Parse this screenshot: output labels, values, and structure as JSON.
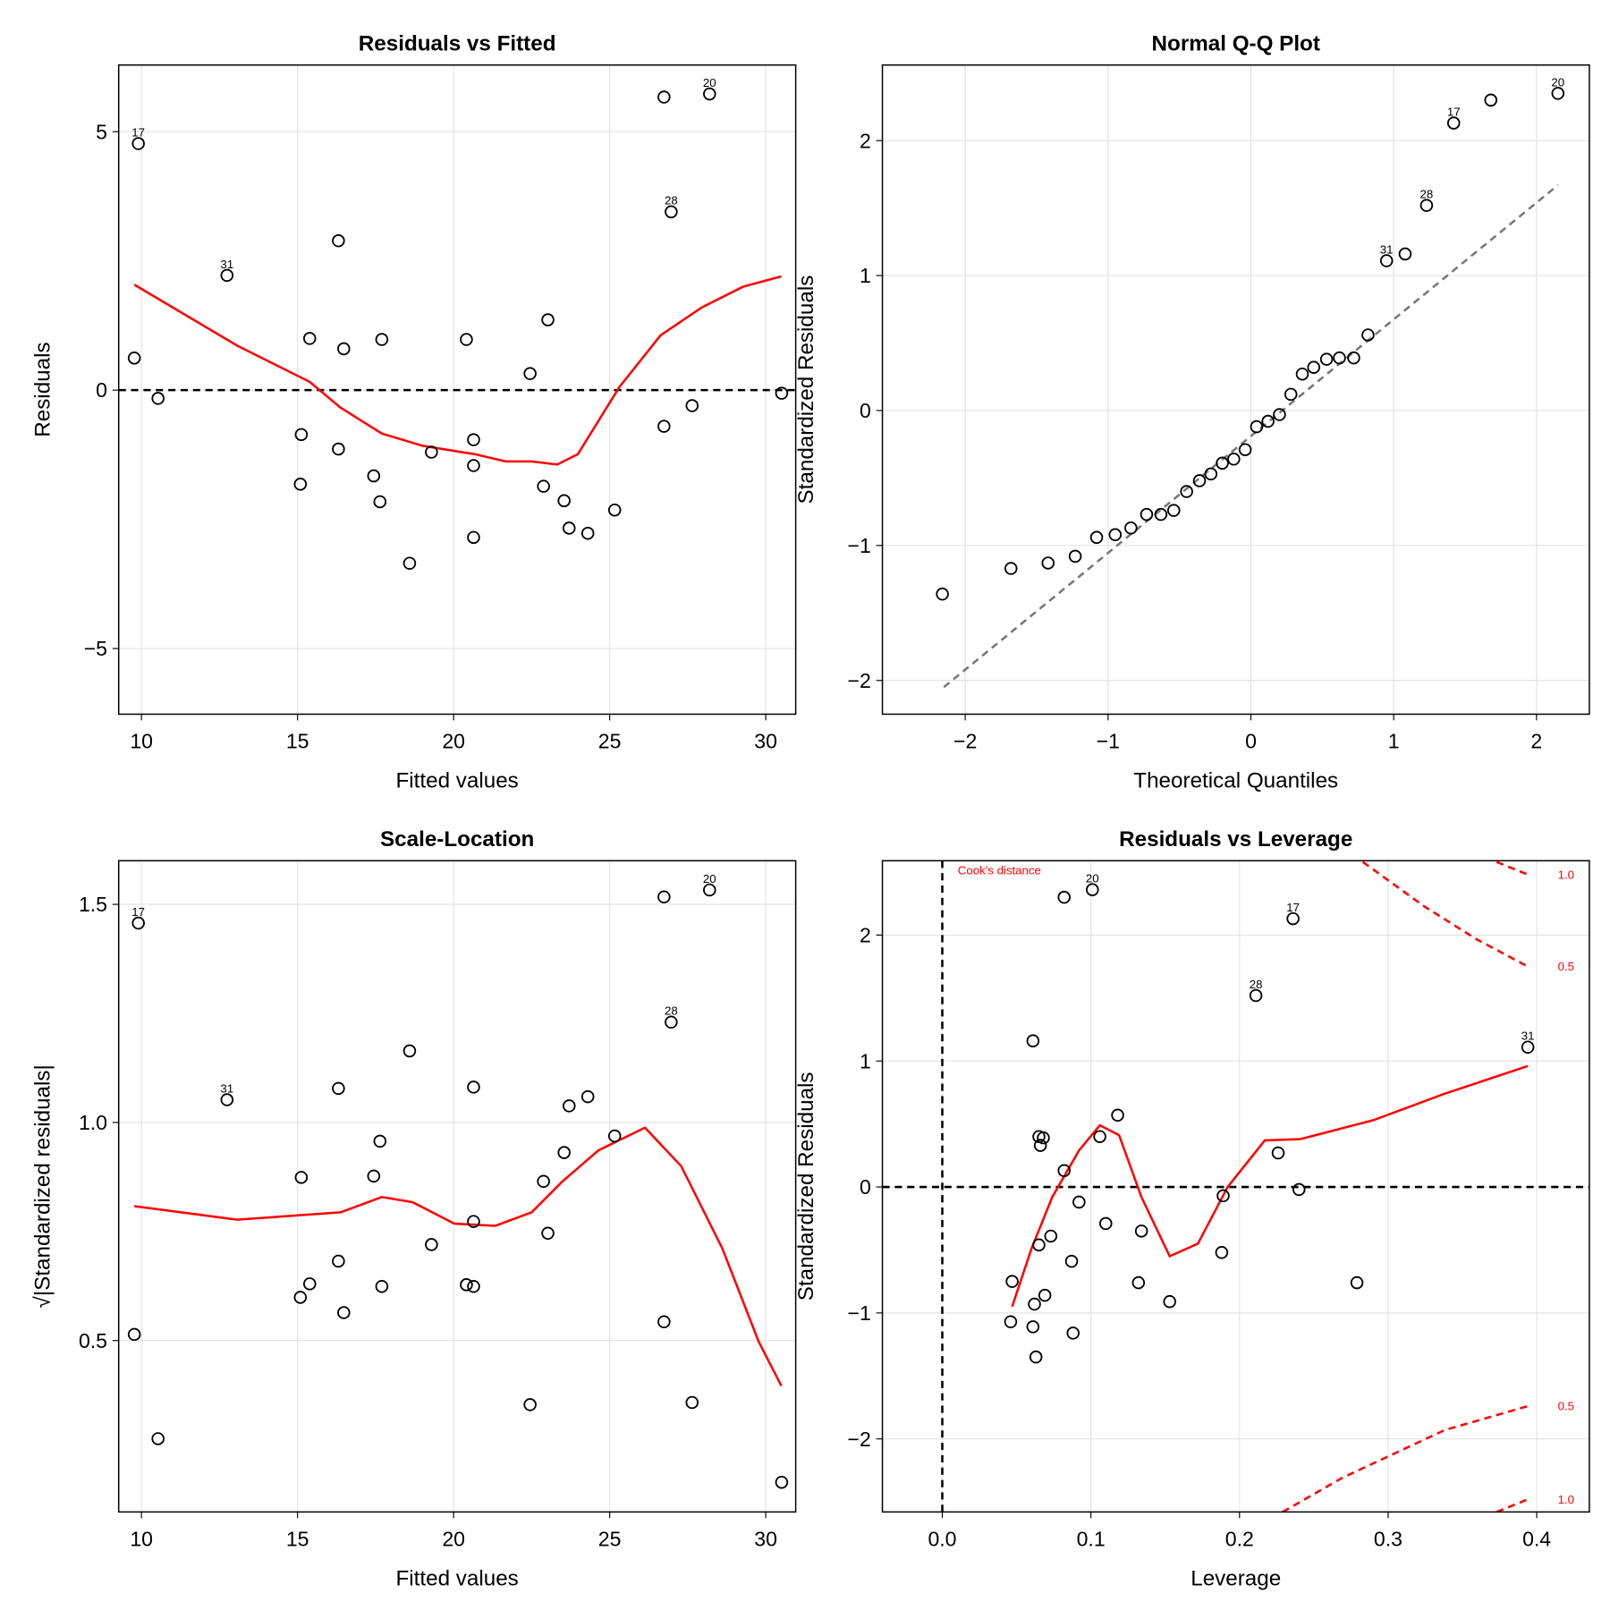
{
  "chart_data": [
    {
      "type": "scatter",
      "title": "Residuals vs Fitted",
      "x_label": "Fitted values",
      "y_label": "Residuals",
      "xlim": [
        9.27,
        30.96
      ],
      "ylim": [
        -6.27,
        6.29
      ],
      "xticks": [
        10,
        15,
        20,
        25,
        30
      ],
      "yticks": [
        {
          "value": -5,
          "label": "−5"
        },
        0,
        5
      ],
      "grid": true,
      "points": {
        "x": [
          9.9,
          9.77,
          10.53,
          12.74,
          16.31,
          15.39,
          16.48,
          17.7,
          20.41,
          23.02,
          22.45,
          15.12,
          16.31,
          15.09,
          17.44,
          17.64,
          19.29,
          20.64,
          20.64,
          20.64,
          18.59,
          22.88,
          23.54,
          23.7,
          24.3,
          25.16,
          26.74,
          28.2,
          26.97,
          26.74,
          27.64,
          30.51
        ],
        "values": [
          4.77,
          0.62,
          -0.16,
          2.22,
          2.89,
          1.0,
          0.8,
          0.98,
          0.98,
          1.36,
          0.32,
          -0.86,
          -1.14,
          -1.82,
          -1.66,
          -2.16,
          -1.2,
          -0.96,
          -1.46,
          -2.85,
          -3.35,
          -1.86,
          -2.14,
          -2.67,
          -2.77,
          -2.32,
          5.67,
          5.73,
          3.45,
          -0.7,
          -0.3,
          -0.06
        ],
        "labels": [
          "17",
          null,
          null,
          "31",
          null,
          null,
          null,
          null,
          null,
          null,
          null,
          null,
          null,
          null,
          null,
          null,
          null,
          null,
          null,
          null,
          null,
          null,
          null,
          null,
          null,
          null,
          null,
          "20",
          "28",
          null,
          null,
          null
        ]
      },
      "smooth": {
        "color": "#ff0000",
        "x": [
          9.77,
          13.07,
          15.39,
          16.38,
          17.7,
          19.02,
          20.68,
          21.67,
          22.5,
          23.32,
          23.98,
          25.31,
          26.63,
          27.95,
          29.27,
          30.5
        ],
        "values": [
          2.04,
          0.86,
          0.16,
          -0.34,
          -0.84,
          -1.08,
          -1.24,
          -1.38,
          -1.38,
          -1.44,
          -1.24,
          0.06,
          1.06,
          1.6,
          2.0,
          2.2
        ]
      },
      "hline": 0
    },
    {
      "type": "scatter",
      "title": "Normal Q-Q Plot",
      "x_label": "Theoretical Quantiles",
      "y_label": "Standardized Residuals",
      "xlim": [
        -2.58,
        2.37
      ],
      "ylim": [
        -2.25,
        2.56
      ],
      "xticks": [
        {
          "value": -2,
          "label": "−2"
        },
        {
          "value": -1,
          "label": "−1"
        },
        0,
        1,
        2
      ],
      "yticks": [
        {
          "value": -2,
          "label": "−2"
        },
        {
          "value": -1,
          "label": "−1"
        },
        0,
        1,
        2
      ],
      "grid": true,
      "points": {
        "x": [
          -2.16,
          -1.68,
          -1.42,
          -1.23,
          -1.08,
          -0.95,
          -0.84,
          -0.73,
          -0.63,
          -0.54,
          -0.45,
          -0.36,
          -0.28,
          -0.2,
          -0.12,
          -0.04,
          0.04,
          0.12,
          0.2,
          0.28,
          0.36,
          0.44,
          0.53,
          0.62,
          0.72,
          0.82,
          0.95,
          1.08,
          1.23,
          1.42,
          1.68,
          2.15
        ],
        "values": [
          -1.36,
          -1.17,
          -1.13,
          -1.08,
          -0.94,
          -0.92,
          -0.87,
          -0.77,
          -0.77,
          -0.74,
          -0.6,
          -0.52,
          -0.47,
          -0.39,
          -0.36,
          -0.29,
          -0.12,
          -0.08,
          -0.03,
          0.12,
          0.27,
          0.32,
          0.38,
          0.39,
          0.39,
          0.56,
          1.11,
          1.16,
          1.52,
          2.13,
          2.3,
          2.35
        ],
        "labels": [
          null,
          null,
          null,
          null,
          null,
          null,
          null,
          null,
          null,
          null,
          null,
          null,
          null,
          null,
          null,
          null,
          null,
          null,
          null,
          null,
          null,
          null,
          null,
          null,
          null,
          null,
          "31",
          null,
          "28",
          "17",
          null,
          "20"
        ]
      },
      "ref_line": {
        "color": "#777777",
        "x": [
          -2.15,
          2.15
        ],
        "values": [
          -2.05,
          1.67
        ]
      }
    },
    {
      "type": "scatter",
      "title": "Scale-Location",
      "x_label": "Fitted values",
      "y_label": "√|Standardized residuals|",
      "xlim": [
        9.27,
        30.96
      ],
      "ylim": [
        0.107,
        1.6
      ],
      "xticks": [
        10,
        15,
        20,
        25,
        30
      ],
      "yticks": [
        0.5,
        {
          "value": 1,
          "label": "1.0"
        },
        1.5
      ],
      "grid": true,
      "points": {
        "x": [
          9.9,
          9.77,
          10.53,
          12.74,
          16.31,
          15.39,
          16.48,
          17.7,
          20.41,
          20.64,
          23.02,
          22.45,
          15.12,
          16.31,
          15.09,
          17.44,
          17.64,
          19.29,
          20.64,
          20.64,
          18.59,
          22.88,
          23.54,
          23.7,
          24.3,
          25.16,
          26.74,
          28.2,
          26.97,
          26.74,
          27.64,
          30.51
        ],
        "values": [
          1.457,
          0.514,
          0.275,
          1.052,
          1.078,
          0.63,
          0.564,
          0.624,
          0.628,
          0.624,
          0.746,
          0.353,
          0.874,
          0.682,
          0.599,
          0.877,
          0.957,
          0.72,
          0.773,
          1.081,
          1.164,
          0.865,
          0.931,
          1.038,
          1.059,
          0.969,
          1.517,
          1.533,
          1.23,
          0.543,
          0.358,
          0.175
        ],
        "labels": [
          "17",
          null,
          null,
          "31",
          null,
          null,
          null,
          null,
          null,
          null,
          null,
          null,
          null,
          null,
          null,
          null,
          null,
          null,
          null,
          null,
          null,
          null,
          null,
          null,
          null,
          null,
          null,
          "20",
          "28",
          null,
          null,
          null
        ]
      },
      "smooth": {
        "color": "#ff0000",
        "x": [
          9.77,
          13.07,
          16.38,
          17.7,
          18.69,
          20.02,
          21.34,
          22.5,
          23.49,
          24.64,
          26.13,
          27.29,
          28.61,
          29.77,
          30.5
        ],
        "values": [
          0.808,
          0.777,
          0.794,
          0.829,
          0.817,
          0.768,
          0.763,
          0.794,
          0.865,
          0.936,
          0.988,
          0.9,
          0.711,
          0.498,
          0.396
        ]
      }
    },
    {
      "type": "scatter",
      "title": "Residuals vs Leverage",
      "x_label": "Leverage",
      "y_label": "Standardized Residuals",
      "xlim": [
        -0.0403,
        0.4354
      ],
      "ylim": [
        -2.58,
        2.59
      ],
      "xticks": [
        {
          "value": 0,
          "label": "0.0"
        },
        0.1,
        0.2,
        0.3,
        0.4
      ],
      "yticks": [
        {
          "value": -2,
          "label": "−2"
        },
        {
          "value": -1,
          "label": "−1"
        },
        0,
        1,
        2
      ],
      "grid": true,
      "points": {
        "x": [
          0.082,
          0.101,
          0.236,
          0.211,
          0.394,
          0.061,
          0.065,
          0.068,
          0.066,
          0.118,
          0.106,
          0.082,
          0.226,
          0.24,
          0.189,
          0.092,
          0.11,
          0.073,
          0.134,
          0.065,
          0.087,
          0.188,
          0.047,
          0.132,
          0.279,
          0.069,
          0.062,
          0.153,
          0.046,
          0.061,
          0.088,
          0.063
        ],
        "values": [
          2.3,
          2.36,
          2.13,
          1.52,
          1.11,
          1.16,
          0.4,
          0.39,
          0.33,
          0.57,
          0.4,
          0.13,
          0.27,
          -0.02,
          -0.07,
          -0.12,
          -0.29,
          -0.39,
          -0.35,
          -0.46,
          -0.59,
          -0.52,
          -0.75,
          -0.76,
          -0.76,
          -0.86,
          -0.93,
          -0.91,
          -1.07,
          -1.11,
          -1.16,
          -1.35
        ],
        "labels": [
          null,
          "20",
          "17",
          "28",
          "31",
          null,
          null,
          null,
          null,
          null,
          null,
          null,
          null,
          null,
          null,
          null,
          null,
          null,
          null,
          null,
          null,
          null,
          null,
          null,
          null,
          null,
          null,
          null,
          null,
          null,
          null,
          null
        ]
      },
      "smooth": {
        "color": "#ff0000",
        "x": [
          0.047,
          0.06,
          0.074,
          0.092,
          0.106,
          0.119,
          0.134,
          0.153,
          0.172,
          0.192,
          0.217,
          0.241,
          0.29,
          0.338,
          0.394
        ],
        "values": [
          -0.95,
          -0.49,
          -0.08,
          0.29,
          0.49,
          0.41,
          -0.08,
          -0.55,
          -0.45,
          0.0,
          0.37,
          0.38,
          0.53,
          0.74,
          0.96
        ]
      },
      "hline": 0,
      "vline": 0,
      "cooks": {
        "title": "Cook's distance",
        "color": "#ff0000",
        "curves": [
          {
            "name": "1.0",
            "x": [
              0.373,
              0.394
            ],
            "values": [
              2.58,
              2.48
            ]
          },
          {
            "name": "0.5",
            "x": [
              0.283,
              0.324,
              0.359,
              0.394
            ],
            "values": [
              2.58,
              2.23,
              1.97,
              1.75
            ]
          },
          {
            "name": "0.5",
            "x": [
              0.229,
              0.269,
              0.338,
              0.394
            ],
            "values": [
              -2.58,
              -2.31,
              -1.93,
              -1.74
            ]
          },
          {
            "name": "1.0",
            "x": [
              0.373,
              0.394
            ],
            "values": [
              -2.58,
              -2.48
            ]
          }
        ]
      }
    }
  ]
}
